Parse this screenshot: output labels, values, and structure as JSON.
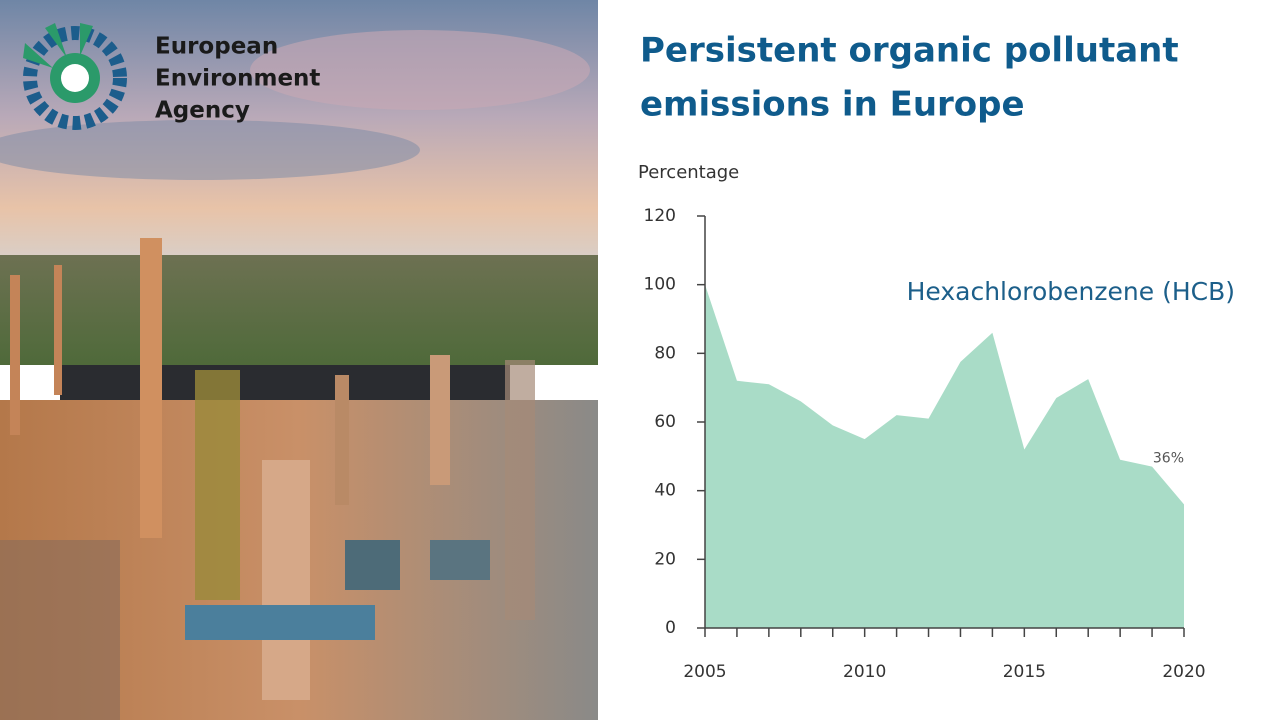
{
  "logo": {
    "lines": [
      "European",
      "Environment",
      "Agency"
    ]
  },
  "chart_data": {
    "type": "area",
    "title": [
      "Persistent organic pollutant",
      "emissions in Europe"
    ],
    "y_label": "Percentage",
    "x": [
      2005,
      2006,
      2007,
      2008,
      2009,
      2010,
      2011,
      2012,
      2013,
      2014,
      2015,
      2016,
      2017,
      2018,
      2019,
      2020
    ],
    "series": [
      {
        "name": "Hexachlorobenzene (HCB)",
        "color": "#a9dcc7",
        "values": [
          100,
          72,
          71,
          66,
          59,
          55,
          62,
          61,
          77.5,
          86,
          52,
          67,
          72.5,
          49,
          47,
          36
        ],
        "value_labels": [
          null,
          null,
          null,
          null,
          null,
          null,
          null,
          null,
          null,
          null,
          null,
          null,
          null,
          null,
          null,
          "36%"
        ]
      }
    ],
    "xlim": [
      2005,
      2020
    ],
    "xticks": [
      2005,
      2010,
      2015,
      2020
    ],
    "ylim": [
      0,
      120
    ],
    "yticks": [
      0,
      20,
      40,
      60,
      80,
      100,
      120
    ]
  }
}
